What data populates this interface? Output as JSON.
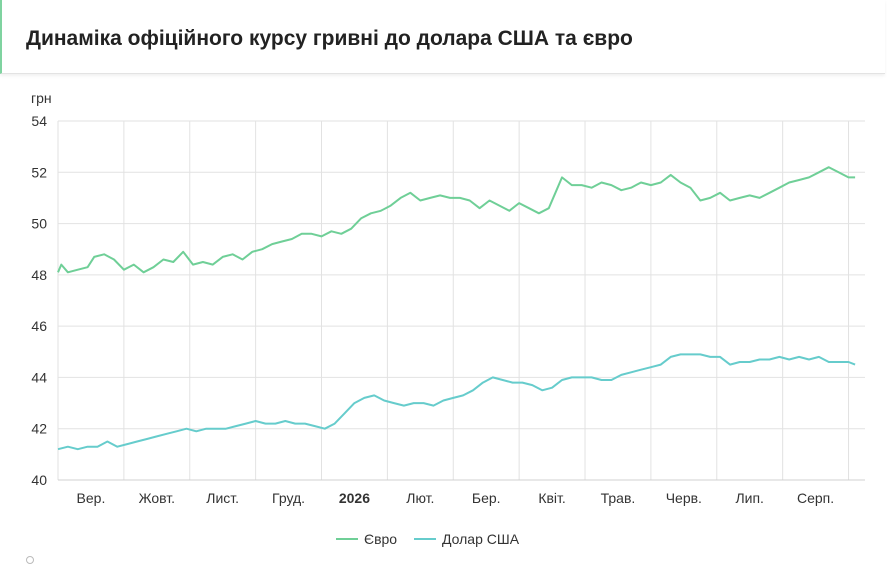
{
  "header": {
    "title": "Динаміка офіційного курсу гривні до долара США та євро"
  },
  "chart_data": {
    "type": "line",
    "ylabel": "грн",
    "xlabel": "",
    "ylim": [
      40,
      54
    ],
    "yticks": [
      40,
      42,
      44,
      46,
      48,
      50,
      52,
      54
    ],
    "xlim": [
      0,
      12.25
    ],
    "x_ticks": [
      {
        "label": "Вер.",
        "at": 0.5
      },
      {
        "label": "Жовт.",
        "at": 1.5
      },
      {
        "label": "Лист.",
        "at": 2.5
      },
      {
        "label": "Груд.",
        "at": 3.5
      },
      {
        "label": "2026",
        "at": 4.5,
        "bold": true
      },
      {
        "label": "Лют.",
        "at": 5.5
      },
      {
        "label": "Бер.",
        "at": 6.5
      },
      {
        "label": "Квіт.",
        "at": 7.5
      },
      {
        "label": "Трав.",
        "at": 8.5
      },
      {
        "label": "Черв.",
        "at": 9.5
      },
      {
        "label": "Лип.",
        "at": 10.5
      },
      {
        "label": "Серп.",
        "at": 11.5
      }
    ],
    "grid": true,
    "legend_position": "bottom-center",
    "series": [
      {
        "name": "Євро",
        "color": "#6fcf97",
        "points": [
          [
            0.0,
            48.1
          ],
          [
            0.05,
            48.4
          ],
          [
            0.15,
            48.1
          ],
          [
            0.3,
            48.2
          ],
          [
            0.45,
            48.3
          ],
          [
            0.55,
            48.7
          ],
          [
            0.7,
            48.8
          ],
          [
            0.85,
            48.6
          ],
          [
            1.0,
            48.2
          ],
          [
            1.15,
            48.4
          ],
          [
            1.3,
            48.1
          ],
          [
            1.45,
            48.3
          ],
          [
            1.6,
            48.6
          ],
          [
            1.75,
            48.5
          ],
          [
            1.9,
            48.9
          ],
          [
            2.05,
            48.4
          ],
          [
            2.2,
            48.5
          ],
          [
            2.35,
            48.4
          ],
          [
            2.5,
            48.7
          ],
          [
            2.65,
            48.8
          ],
          [
            2.8,
            48.6
          ],
          [
            2.95,
            48.9
          ],
          [
            3.1,
            49.0
          ],
          [
            3.25,
            49.2
          ],
          [
            3.4,
            49.3
          ],
          [
            3.55,
            49.4
          ],
          [
            3.7,
            49.6
          ],
          [
            3.85,
            49.6
          ],
          [
            4.0,
            49.5
          ],
          [
            4.15,
            49.7
          ],
          [
            4.3,
            49.6
          ],
          [
            4.45,
            49.8
          ],
          [
            4.6,
            50.2
          ],
          [
            4.75,
            50.4
          ],
          [
            4.9,
            50.5
          ],
          [
            5.05,
            50.7
          ],
          [
            5.2,
            51.0
          ],
          [
            5.35,
            51.2
          ],
          [
            5.5,
            50.9
          ],
          [
            5.65,
            51.0
          ],
          [
            5.8,
            51.1
          ],
          [
            5.95,
            51.0
          ],
          [
            6.1,
            51.0
          ],
          [
            6.25,
            50.9
          ],
          [
            6.4,
            50.6
          ],
          [
            6.55,
            50.9
          ],
          [
            6.7,
            50.7
          ],
          [
            6.85,
            50.5
          ],
          [
            7.0,
            50.8
          ],
          [
            7.15,
            50.6
          ],
          [
            7.3,
            50.4
          ],
          [
            7.45,
            50.6
          ],
          [
            7.55,
            51.2
          ],
          [
            7.65,
            51.8
          ],
          [
            7.8,
            51.5
          ],
          [
            7.95,
            51.5
          ],
          [
            8.1,
            51.4
          ],
          [
            8.25,
            51.6
          ],
          [
            8.4,
            51.5
          ],
          [
            8.55,
            51.3
          ],
          [
            8.7,
            51.4
          ],
          [
            8.85,
            51.6
          ],
          [
            9.0,
            51.5
          ],
          [
            9.15,
            51.6
          ],
          [
            9.3,
            51.9
          ],
          [
            9.45,
            51.6
          ],
          [
            9.6,
            51.4
          ],
          [
            9.75,
            50.9
          ],
          [
            9.9,
            51.0
          ],
          [
            10.05,
            51.2
          ],
          [
            10.2,
            50.9
          ],
          [
            10.35,
            51.0
          ],
          [
            10.5,
            51.1
          ],
          [
            10.65,
            51.0
          ],
          [
            10.8,
            51.2
          ],
          [
            10.95,
            51.4
          ],
          [
            11.1,
            51.6
          ],
          [
            11.25,
            51.7
          ],
          [
            11.4,
            51.8
          ],
          [
            11.55,
            52.0
          ],
          [
            11.7,
            52.2
          ],
          [
            11.85,
            52.0
          ],
          [
            12.0,
            51.8
          ],
          [
            12.1,
            51.8
          ]
        ]
      },
      {
        "name": "Долар США",
        "color": "#66cccc",
        "points": [
          [
            0.0,
            41.2
          ],
          [
            0.15,
            41.3
          ],
          [
            0.3,
            41.2
          ],
          [
            0.45,
            41.3
          ],
          [
            0.6,
            41.3
          ],
          [
            0.75,
            41.5
          ],
          [
            0.9,
            41.3
          ],
          [
            1.05,
            41.4
          ],
          [
            1.2,
            41.5
          ],
          [
            1.35,
            41.6
          ],
          [
            1.5,
            41.7
          ],
          [
            1.65,
            41.8
          ],
          [
            1.8,
            41.9
          ],
          [
            1.95,
            42.0
          ],
          [
            2.1,
            41.9
          ],
          [
            2.25,
            42.0
          ],
          [
            2.4,
            42.0
          ],
          [
            2.55,
            42.0
          ],
          [
            2.7,
            42.1
          ],
          [
            2.85,
            42.2
          ],
          [
            3.0,
            42.3
          ],
          [
            3.15,
            42.2
          ],
          [
            3.3,
            42.2
          ],
          [
            3.45,
            42.3
          ],
          [
            3.6,
            42.2
          ],
          [
            3.75,
            42.2
          ],
          [
            3.9,
            42.1
          ],
          [
            4.05,
            42.0
          ],
          [
            4.2,
            42.2
          ],
          [
            4.35,
            42.6
          ],
          [
            4.5,
            43.0
          ],
          [
            4.65,
            43.2
          ],
          [
            4.8,
            43.3
          ],
          [
            4.95,
            43.1
          ],
          [
            5.1,
            43.0
          ],
          [
            5.25,
            42.9
          ],
          [
            5.4,
            43.0
          ],
          [
            5.55,
            43.0
          ],
          [
            5.7,
            42.9
          ],
          [
            5.85,
            43.1
          ],
          [
            6.0,
            43.2
          ],
          [
            6.15,
            43.3
          ],
          [
            6.3,
            43.5
          ],
          [
            6.45,
            43.8
          ],
          [
            6.6,
            44.0
          ],
          [
            6.75,
            43.9
          ],
          [
            6.9,
            43.8
          ],
          [
            7.05,
            43.8
          ],
          [
            7.2,
            43.7
          ],
          [
            7.35,
            43.5
          ],
          [
            7.5,
            43.6
          ],
          [
            7.65,
            43.9
          ],
          [
            7.8,
            44.0
          ],
          [
            7.95,
            44.0
          ],
          [
            8.1,
            44.0
          ],
          [
            8.25,
            43.9
          ],
          [
            8.4,
            43.9
          ],
          [
            8.55,
            44.1
          ],
          [
            8.7,
            44.2
          ],
          [
            8.85,
            44.3
          ],
          [
            9.0,
            44.4
          ],
          [
            9.15,
            44.5
          ],
          [
            9.3,
            44.8
          ],
          [
            9.45,
            44.9
          ],
          [
            9.6,
            44.9
          ],
          [
            9.75,
            44.9
          ],
          [
            9.9,
            44.8
          ],
          [
            10.05,
            44.8
          ],
          [
            10.2,
            44.5
          ],
          [
            10.35,
            44.6
          ],
          [
            10.5,
            44.6
          ],
          [
            10.65,
            44.7
          ],
          [
            10.8,
            44.7
          ],
          [
            10.95,
            44.8
          ],
          [
            11.1,
            44.7
          ],
          [
            11.25,
            44.8
          ],
          [
            11.4,
            44.7
          ],
          [
            11.55,
            44.8
          ],
          [
            11.7,
            44.6
          ],
          [
            11.85,
            44.6
          ],
          [
            12.0,
            44.6
          ],
          [
            12.1,
            44.5
          ]
        ]
      }
    ]
  }
}
